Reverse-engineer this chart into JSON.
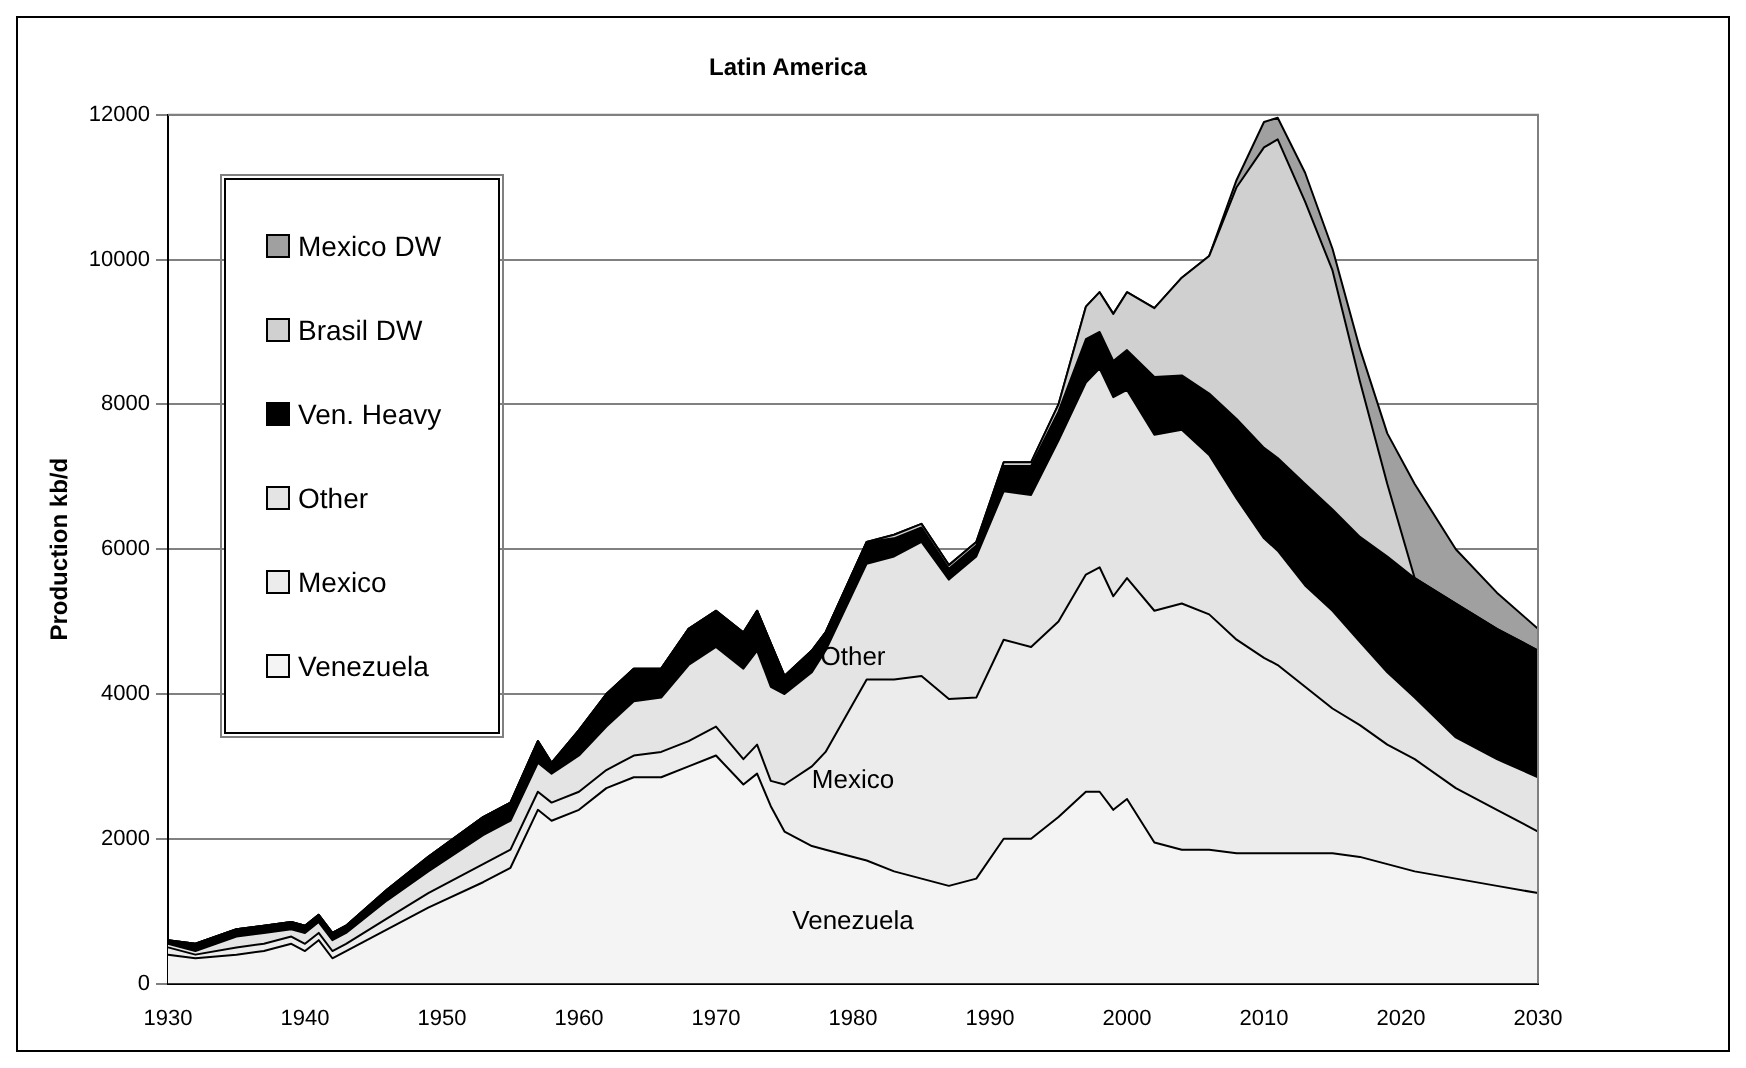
{
  "chart_data": {
    "type": "area",
    "title": "Latin America",
    "ylabel": "Production kb/d",
    "stacked": true,
    "grid": "y",
    "legend": "top left",
    "x": [
      1930,
      1932,
      1935,
      1937,
      1939,
      1940,
      1941,
      1942,
      1943,
      1946,
      1949,
      1953,
      1955,
      1957,
      1958,
      1960,
      1962,
      1964,
      1966,
      1968,
      1970,
      1972,
      1973,
      1974,
      1975,
      1977,
      1978,
      1981,
      1983,
      1985,
      1987,
      1989,
      1991,
      1993,
      1995,
      1997,
      1998,
      1999,
      2000,
      2002,
      2004,
      2006,
      2008,
      2010,
      2011,
      2013,
      2015,
      2017,
      2019,
      2021,
      2024,
      2027,
      2030
    ],
    "xlim": [
      1930,
      2030
    ],
    "xticks": [
      1930,
      1940,
      1950,
      1960,
      1970,
      1980,
      1990,
      2000,
      2010,
      2020,
      2030
    ],
    "ylim": [
      0,
      12000
    ],
    "yticks": [
      0,
      2000,
      4000,
      6000,
      8000,
      10000,
      12000
    ],
    "series": [
      {
        "name": "Venezuela",
        "color": "#f4f4f4",
        "values": [
          400,
          350,
          400,
          450,
          550,
          450,
          600,
          350,
          450,
          750,
          1050,
          1400,
          1600,
          2400,
          2250,
          2400,
          2700,
          2850,
          2850,
          3000,
          3150,
          2750,
          2900,
          2450,
          2100,
          1900,
          1850,
          1700,
          1550,
          1450,
          1350,
          1450,
          2000,
          2000,
          2300,
          2650,
          2650,
          2400,
          2550,
          1950,
          1850,
          1850,
          1800,
          1800,
          1800,
          1800,
          1800,
          1750,
          1650,
          1550,
          1450,
          1350,
          1250
        ]
      },
      {
        "name": "Mexico",
        "color": "#ececec",
        "values": [
          100,
          50,
          100,
          100,
          100,
          100,
          100,
          100,
          100,
          150,
          200,
          250,
          250,
          250,
          250,
          250,
          250,
          300,
          350,
          350,
          400,
          350,
          400,
          350,
          650,
          1100,
          1350,
          2500,
          2650,
          2800,
          2580,
          2500,
          2750,
          2650,
          2700,
          3000,
          3100,
          2950,
          3050,
          3200,
          3400,
          3250,
          2950,
          2700,
          2600,
          2300,
          2000,
          1820,
          1650,
          1550,
          1250,
          1050,
          850
        ]
      },
      {
        "name": "Other",
        "color": "#e4e4e4",
        "values": [
          50,
          50,
          150,
          150,
          100,
          150,
          150,
          150,
          150,
          250,
          300,
          400,
          400,
          400,
          400,
          500,
          600,
          750,
          750,
          1050,
          1100,
          1250,
          1300,
          1300,
          1250,
          1300,
          1400,
          1600,
          1700,
          1850,
          1650,
          1950,
          2050,
          2100,
          2500,
          2650,
          2750,
          2750,
          2600,
          2430,
          2400,
          2200,
          1950,
          1650,
          1580,
          1400,
          1350,
          1150,
          1000,
          850,
          700,
          700,
          750
        ]
      },
      {
        "name": "Ven. Heavy",
        "color": "#000000",
        "values": [
          50,
          100,
          100,
          100,
          100,
          100,
          100,
          100,
          100,
          150,
          200,
          250,
          250,
          300,
          150,
          350,
          450,
          450,
          400,
          500,
          500,
          500,
          550,
          600,
          250,
          300,
          250,
          300,
          250,
          200,
          150,
          150,
          350,
          400,
          400,
          600,
          500,
          500,
          550,
          800,
          750,
          850,
          1100,
          1250,
          1280,
          1400,
          1400,
          1450,
          1600,
          1650,
          1850,
          1800,
          1750
        ]
      },
      {
        "name": "Brasil DW",
        "color": "#d0d0d0",
        "values": [
          0,
          0,
          0,
          0,
          0,
          0,
          0,
          0,
          0,
          0,
          0,
          0,
          0,
          0,
          0,
          0,
          0,
          0,
          0,
          0,
          0,
          0,
          0,
          0,
          0,
          0,
          0,
          0,
          50,
          50,
          50,
          50,
          50,
          50,
          100,
          450,
          550,
          650,
          800,
          950,
          1350,
          1900,
          3200,
          4150,
          4400,
          3900,
          3300,
          2150,
          1000,
          0,
          0,
          0,
          0
        ]
      },
      {
        "name": "Mexico DW",
        "color": "#a0a0a0",
        "values": [
          0,
          0,
          0,
          0,
          0,
          0,
          0,
          0,
          0,
          0,
          0,
          0,
          0,
          0,
          0,
          0,
          0,
          0,
          0,
          0,
          0,
          0,
          0,
          0,
          0,
          0,
          0,
          0,
          0,
          0,
          0,
          0,
          0,
          0,
          0,
          0,
          0,
          0,
          0,
          0,
          0,
          0,
          100,
          350,
          300,
          400,
          300,
          450,
          700,
          1300,
          750,
          500,
          300
        ]
      }
    ],
    "annotations": [
      "Other",
      "Mexico",
      "Venezuela"
    ]
  }
}
